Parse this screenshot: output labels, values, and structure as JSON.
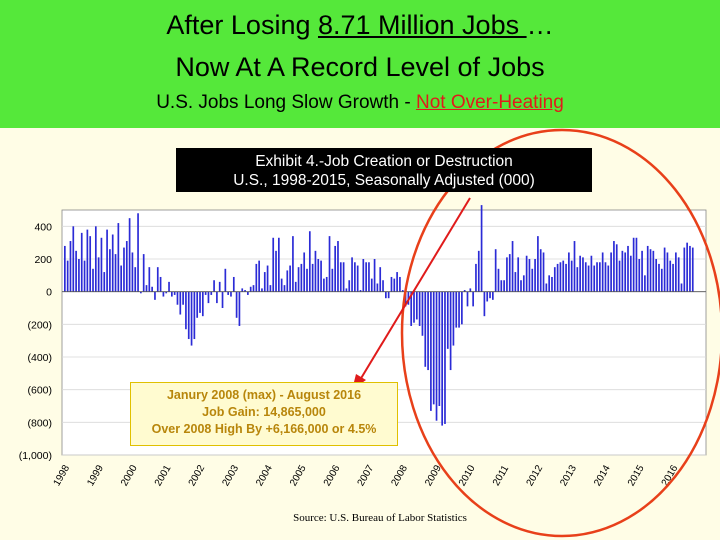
{
  "header": {
    "title_line1_pre": "After Losing ",
    "title_line1_ul": "8.71 Million Jobs ",
    "title_line1_post": "…",
    "title_line2": "Now At A Record Level of Jobs",
    "subtitle_pre": "U.S. Jobs Long Slow Growth - ",
    "subtitle_red": "Not Over-Heating",
    "background": "#55e83a",
    "highlight_color": "#e01b1b"
  },
  "exhibit": {
    "line1": "Exhibit 4.-Job Creation or Destruction",
    "line2": "U.S., 1998-2015, Seasonally Adjusted (000)"
  },
  "annotation": {
    "line1": "Janury 2008 (max) - August 2016",
    "line2": "Job Gain:  14,865,000",
    "line3": "Over 2008 High By +6,166,000 or 4.5%"
  },
  "source": "Source:  U.S. Bureau of Labor Statistics",
  "chart_data": {
    "type": "bar",
    "title": "Exhibit 4.-Job Creation or Destruction",
    "subtitle": "U.S., 1998-2015, Seasonally Adjusted (000)",
    "ylim": [
      -1000,
      500
    ],
    "yticks": [
      400,
      200,
      0,
      -200,
      -400,
      -600,
      -800,
      -1000
    ],
    "ytick_labels": [
      "400",
      "200",
      "0",
      "(200)",
      "(400)",
      "(600)",
      "(800)",
      "(1,000)"
    ],
    "xtick_labels": [
      "1998",
      "1999",
      "2000",
      "2001",
      "2002",
      "2003",
      "2004",
      "2005",
      "2006",
      "2007",
      "2008",
      "2009",
      "2010",
      "2011",
      "2012",
      "2013",
      "2014",
      "2015",
      "2016"
    ],
    "bar_color": "#2b2bd6",
    "start_year": 1998,
    "months_per_year": 12,
    "grid": true,
    "yearly_values": [
      [
        280,
        190,
        310,
        400,
        250,
        200,
        360,
        190,
        380,
        340,
        140,
        400
      ],
      [
        210,
        330,
        120,
        380,
        260,
        350,
        230,
        420,
        160,
        270,
        310,
        450
      ],
      [
        240,
        150,
        480,
        -10,
        230,
        40,
        150,
        30,
        -50,
        150,
        90,
        -30
      ],
      [
        -10,
        60,
        -30,
        -20,
        -80,
        -140,
        -80,
        -230,
        -290,
        -330,
        -290,
        -160
      ],
      [
        -130,
        -150,
        -20,
        -70,
        -20,
        70,
        -70,
        60,
        -100,
        140,
        -20,
        -30
      ],
      [
        90,
        -160,
        -210,
        20,
        10,
        -20,
        30,
        40,
        170,
        190,
        20,
        120
      ],
      [
        160,
        40,
        330,
        250,
        330,
        80,
        40,
        130,
        160,
        340,
        60,
        150
      ],
      [
        170,
        240,
        140,
        370,
        170,
        250,
        200,
        190,
        80,
        90,
        340,
        140
      ],
      [
        280,
        310,
        180,
        180,
        20,
        70,
        210,
        180,
        160,
        10,
        200,
        180
      ],
      [
        180,
        80,
        200,
        50,
        150,
        70,
        -40,
        -40,
        90,
        80,
        120,
        90
      ],
      [
        10,
        -90,
        -80,
        -210,
        -190,
        -170,
        -210,
        -270,
        -460,
        -480,
        -730,
        -690
      ],
      [
        -790,
        -700,
        -820,
        -810,
        -350,
        -480,
        -330,
        -220,
        -220,
        -200,
        10,
        -90
      ],
      [
        20,
        -90,
        170,
        250,
        530,
        -150,
        -60,
        -40,
        -50,
        260,
        140,
        70
      ],
      [
        70,
        210,
        230,
        310,
        120,
        210,
        70,
        100,
        220,
        200,
        140,
        200
      ],
      [
        340,
        260,
        240,
        50,
        100,
        90,
        150,
        170,
        180,
        190,
        170,
        240
      ],
      [
        190,
        310,
        150,
        220,
        210,
        180,
        160,
        220,
        160,
        180,
        180,
        240
      ],
      [
        180,
        160,
        240,
        310,
        290,
        190,
        250,
        240,
        280,
        220,
        330,
        330
      ],
      [
        200,
        250,
        100,
        280,
        260,
        250,
        200,
        170,
        140,
        270,
        240,
        190
      ],
      [
        170,
        240,
        210,
        50,
        270,
        300,
        280,
        270
      ]
    ]
  }
}
